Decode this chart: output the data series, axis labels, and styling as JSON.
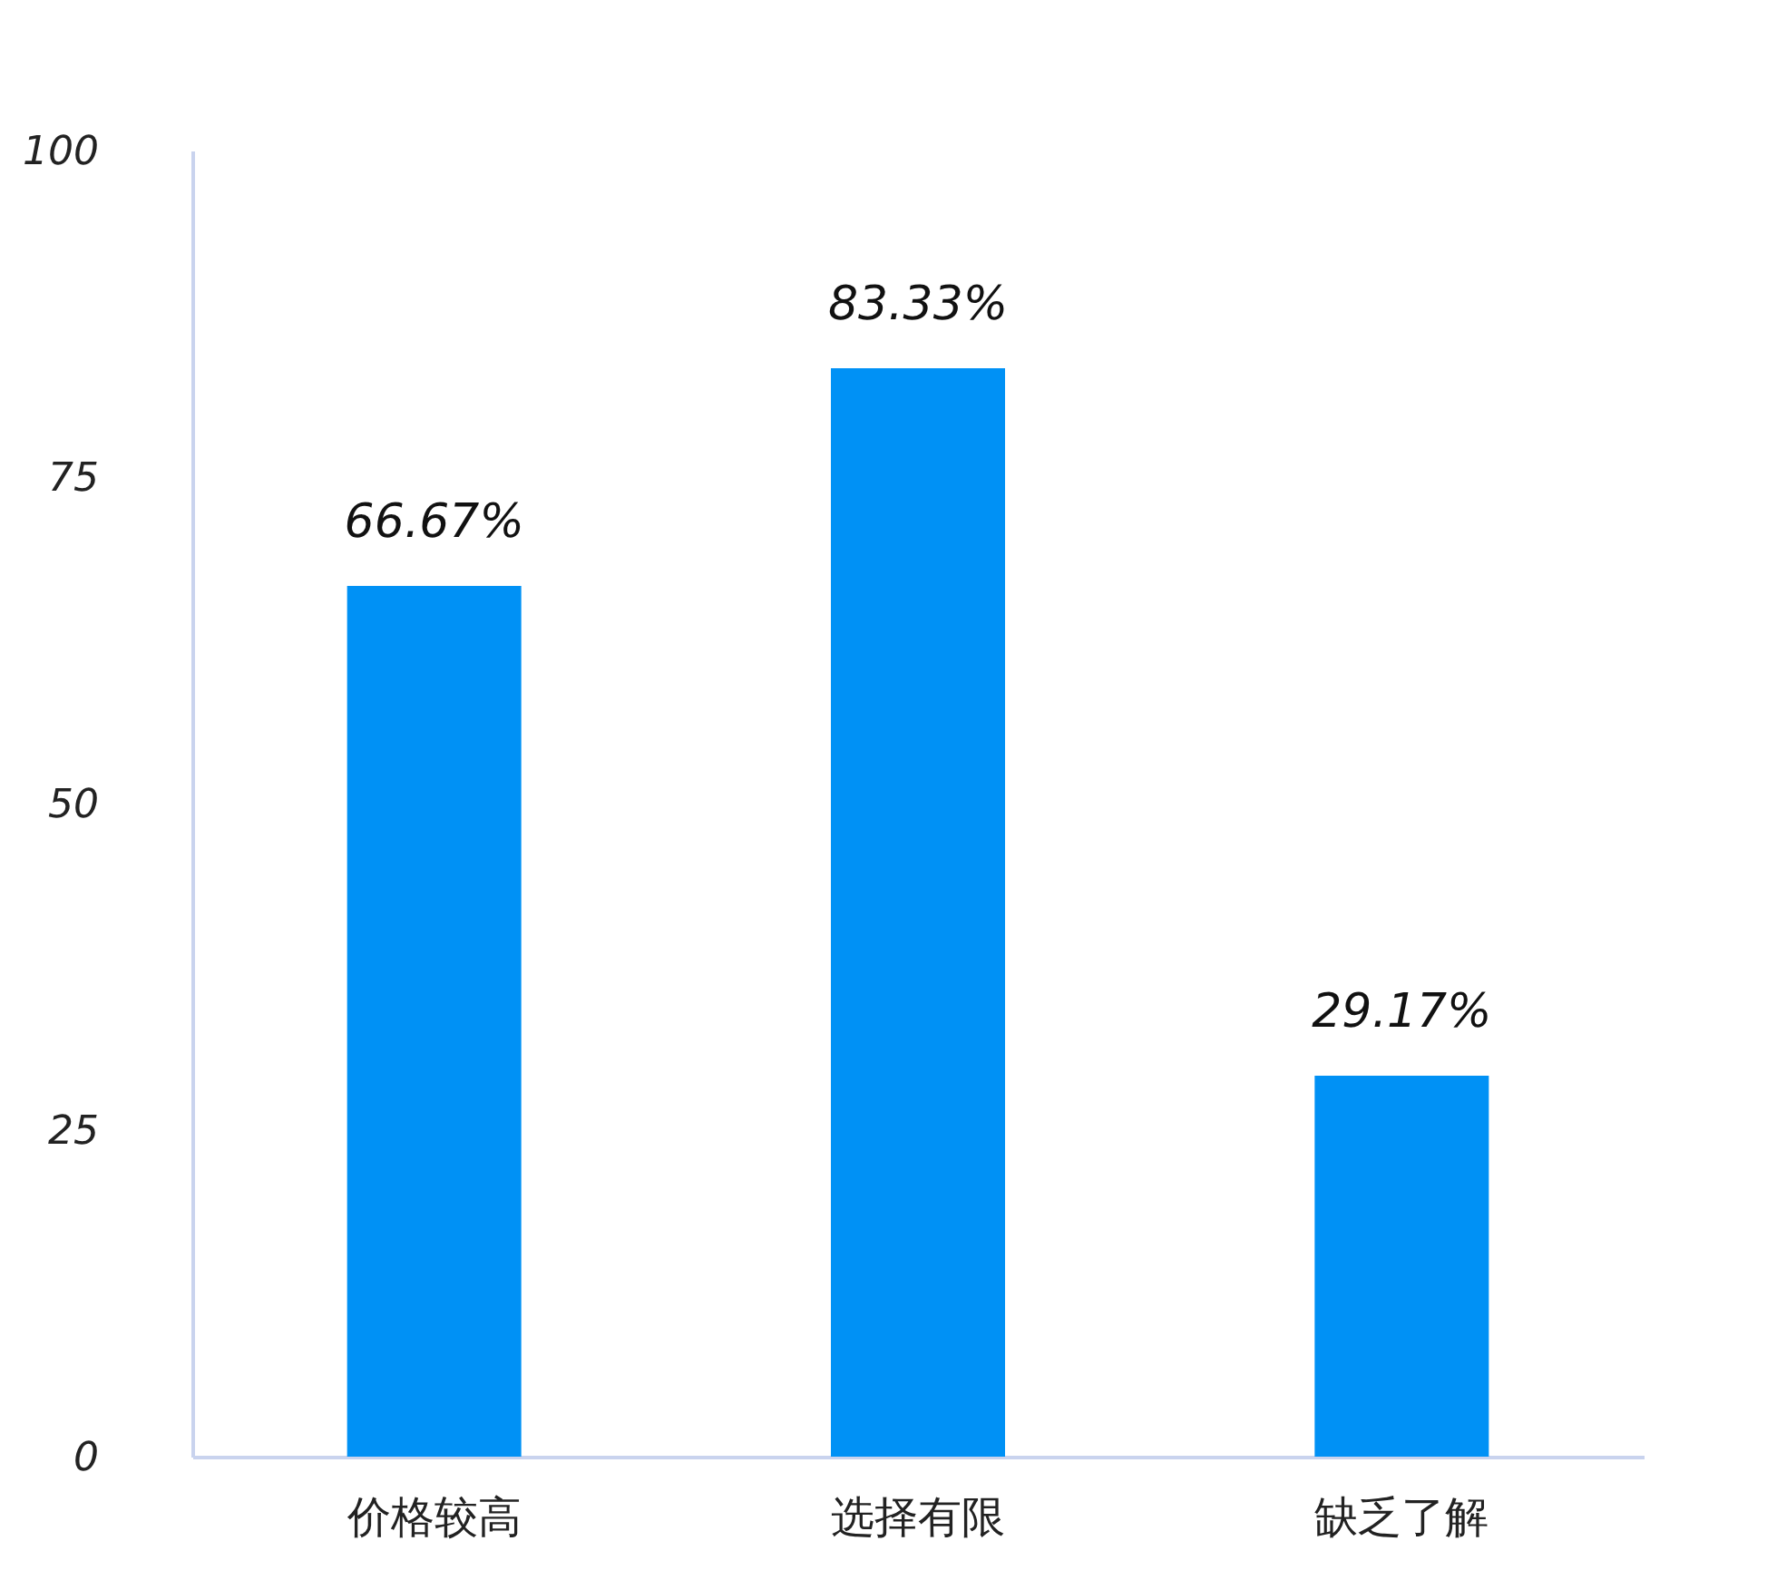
{
  "chart_data": {
    "type": "bar",
    "categories": [
      "价格较高",
      "选择有限",
      "缺乏了解"
    ],
    "values": [
      66.67,
      83.33,
      29.17
    ],
    "value_labels": [
      "66.67%",
      "83.33%",
      "29.17%"
    ],
    "color": "#0091f5",
    "ylim": [
      0,
      100
    ],
    "yticks": [
      0,
      25,
      50,
      75,
      100
    ],
    "grid": false
  }
}
